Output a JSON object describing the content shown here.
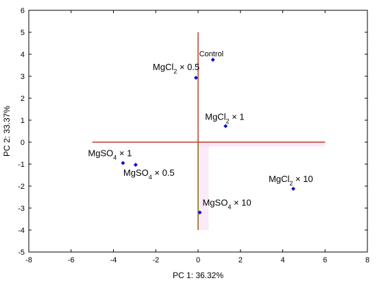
{
  "chart_data": {
    "type": "scatter",
    "title": "",
    "xlabel": "PC 1: 36.32%",
    "ylabel": "PC 2: 33.37%",
    "xlim": [
      -8,
      8
    ],
    "ylim": [
      -5,
      6
    ],
    "xticks": [
      -8,
      -6,
      -4,
      -2,
      0,
      2,
      4,
      6,
      8
    ],
    "yticks": [
      -5,
      -4,
      -3,
      -2,
      -1,
      0,
      1,
      2,
      3,
      4,
      5,
      6
    ],
    "grid": false,
    "colors": {
      "point": "#0a0ad0",
      "reference_lines": "#c0392b",
      "vertical_lower_line": "#7a6a00",
      "shading": "#f7d8f4",
      "axes": "#000000"
    },
    "reference_lines": {
      "horizontal": {
        "y": 0,
        "x_range": [
          -5,
          6
        ]
      },
      "vertical_upper": {
        "x": 0,
        "y_range": [
          0,
          5
        ]
      },
      "vertical_lower": {
        "x": 0,
        "y_range": [
          -4,
          0
        ]
      }
    },
    "points": [
      {
        "name": "Control",
        "x": 0.7,
        "y": 3.75
      },
      {
        "name": "MgCl2 × 0.5",
        "x": -0.1,
        "y": 2.93
      },
      {
        "name": "MgCl2 × 1",
        "x": 1.3,
        "y": 0.73
      },
      {
        "name": "MgSO4 × 1",
        "x": -3.55,
        "y": -0.95
      },
      {
        "name": "MgSO4 × 0.5",
        "x": -2.95,
        "y": -1.03
      },
      {
        "name": "MgCl2 × 10",
        "x": 4.5,
        "y": -2.12
      },
      {
        "name": "MgSO4 × 10",
        "x": 0.08,
        "y": -3.2
      }
    ],
    "label_parts": [
      {
        "base": "",
        "sub": "",
        "suffix": "Control"
      },
      {
        "base": "MgCl",
        "sub": "2",
        "suffix": " × 0.5"
      },
      {
        "base": "MgCl",
        "sub": "2",
        "suffix": " × 1"
      },
      {
        "base": "MgSO",
        "sub": "4",
        "suffix": " × 1"
      },
      {
        "base": "MgSO",
        "sub": "4",
        "suffix": " × 0.5"
      },
      {
        "base": "MgCl",
        "sub": "2",
        "suffix": " × 10"
      },
      {
        "base": "MgSO",
        "sub": "4",
        "suffix": " × 10"
      }
    ]
  }
}
